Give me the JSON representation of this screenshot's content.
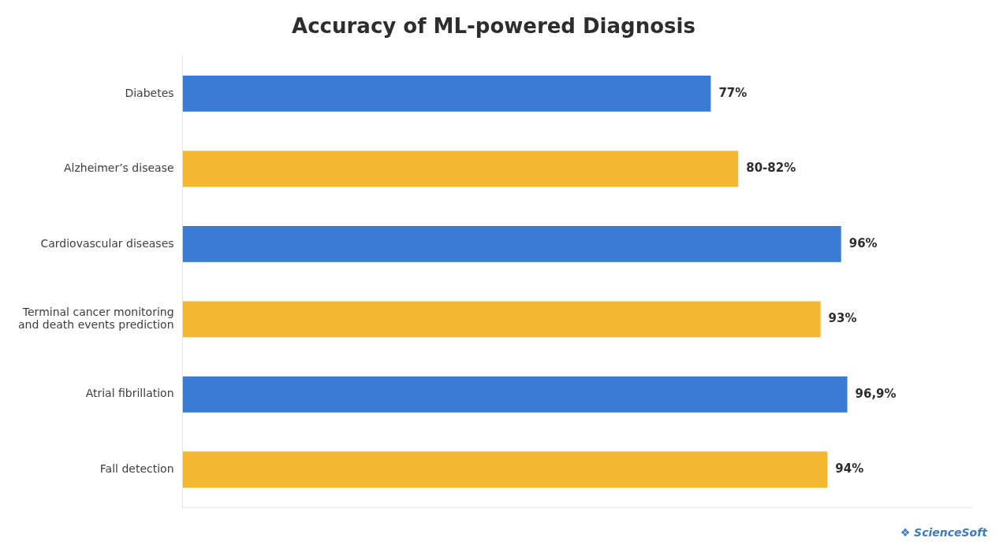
{
  "chart_data": {
    "type": "bar",
    "orientation": "horizontal",
    "title": "Accuracy of ML-powered Diagnosis",
    "categories": [
      "Diabetes",
      "Alzheimer’s disease",
      "Cardiovascular diseases",
      "Terminal cancer monitoring\nand death events prediction",
      "Atrial fibrillation",
      "Fall detection"
    ],
    "values": [
      77,
      81,
      96,
      93,
      96.9,
      94
    ],
    "value_labels": [
      "77%",
      "80-82%",
      "96%",
      "93%",
      "96,9%",
      "94%"
    ],
    "data_labels": true,
    "colors": [
      "#3a7bd5",
      "#f5b731",
      "#3a7bd5",
      "#f5b731",
      "#3a7bd5",
      "#f5b731"
    ],
    "xlim": [
      0,
      115
    ],
    "tick_labels": "y",
    "grid": false,
    "annotations": [
      "❖ ScienceSoft"
    ]
  }
}
